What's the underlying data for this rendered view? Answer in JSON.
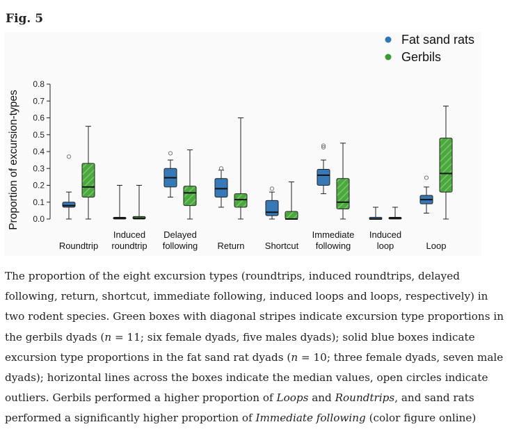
{
  "figure": {
    "label": "Fig. 5"
  },
  "chart_data": {
    "type": "box",
    "ylabel": "Proportion of excursion-types",
    "ylim": [
      0,
      0.8
    ],
    "yticks": [
      "0.0",
      "0.1",
      "0.2",
      "0.3",
      "0.4",
      "0.5",
      "0.6",
      "0.7",
      "0.8"
    ],
    "categories": [
      [
        "",
        "Roundtrip"
      ],
      [
        "Induced",
        "roundtrip"
      ],
      [
        "Delayed",
        "following"
      ],
      [
        "",
        "Return"
      ],
      [
        "",
        "Shortcut"
      ],
      [
        "Immediate",
        "following"
      ],
      [
        "Induced",
        "loop"
      ],
      [
        "",
        "Loop"
      ]
    ],
    "legend": {
      "position": "top-right",
      "items": [
        {
          "label": "Fat sand rats",
          "color": "#2e75b6"
        },
        {
          "label": "Gerbils",
          "color": "#3a9a35"
        }
      ]
    },
    "series": [
      {
        "name": "Fat sand rats",
        "color": "#3778b7",
        "style": "solid",
        "boxes": [
          {
            "min": 0.0,
            "q1": 0.07,
            "median": 0.08,
            "q3": 0.1,
            "max": 0.16,
            "outliers": [
              0.37
            ]
          },
          {
            "min": 0.0,
            "q1": 0.0,
            "median": 0.005,
            "q3": 0.01,
            "max": 0.2,
            "outliers": []
          },
          {
            "min": 0.13,
            "q1": 0.19,
            "median": 0.245,
            "q3": 0.3,
            "max": 0.35,
            "outliers": [
              0.39
            ]
          },
          {
            "min": 0.07,
            "q1": 0.13,
            "median": 0.18,
            "q3": 0.24,
            "max": 0.29,
            "outliers": [
              0.3
            ]
          },
          {
            "min": 0.0,
            "q1": 0.02,
            "median": 0.04,
            "q3": 0.11,
            "max": 0.16,
            "outliers": [
              0.18
            ]
          },
          {
            "min": 0.15,
            "q1": 0.2,
            "median": 0.26,
            "q3": 0.295,
            "max": 0.35,
            "outliers": [
              0.425,
              0.435
            ]
          },
          {
            "min": 0.0,
            "q1": 0.0,
            "median": 0.0,
            "q3": 0.0,
            "max": 0.07,
            "outliers": []
          },
          {
            "min": 0.035,
            "q1": 0.09,
            "median": 0.115,
            "q3": 0.14,
            "max": 0.19,
            "outliers": [
              0.245
            ]
          }
        ]
      },
      {
        "name": "Gerbils",
        "color": "#4aa83f",
        "style": "hatched",
        "boxes": [
          {
            "min": 0.0,
            "q1": 0.13,
            "median": 0.19,
            "q3": 0.33,
            "max": 0.55,
            "outliers": []
          },
          {
            "min": 0.0,
            "q1": 0.0,
            "median": 0.005,
            "q3": 0.015,
            "max": 0.2,
            "outliers": []
          },
          {
            "min": 0.0,
            "q1": 0.08,
            "median": 0.155,
            "q3": 0.195,
            "max": 0.41,
            "outliers": []
          },
          {
            "min": 0.0,
            "q1": 0.07,
            "median": 0.115,
            "q3": 0.15,
            "max": 0.6,
            "outliers": []
          },
          {
            "min": 0.0,
            "q1": 0.0,
            "median": 0.0,
            "q3": 0.045,
            "max": 0.22,
            "outliers": []
          },
          {
            "min": 0.0,
            "q1": 0.06,
            "median": 0.1,
            "q3": 0.24,
            "max": 0.45,
            "outliers": []
          },
          {
            "min": 0.0,
            "q1": 0.0,
            "median": 0.005,
            "q3": 0.01,
            "max": 0.07,
            "outliers": []
          },
          {
            "min": 0.0,
            "q1": 0.16,
            "median": 0.27,
            "q3": 0.48,
            "max": 0.67,
            "outliers": []
          }
        ]
      }
    ]
  },
  "caption": {
    "p1": "The proportion of the eight excursion types (roundtrips, induced roundtrips, delayed following, return, shortcut, immediate following, induced loops and loops, respectively) in two rodent species. Green boxes with diagonal stripes indicate excursion type proportions in the gerbils dyads (",
    "n1_var": "n",
    "p2": " = 11; six female dyads, five males dyads); solid blue boxes indicate excursion type proportions in the fat sand rat dyads (",
    "n2_var": "n",
    "p3": " = 10; three female dyads, seven male dyads); horizontal lines across the boxes indicate the median values, open circles indicate outliers. Gerbils performed a higher proportion of ",
    "em1": "Loops",
    "p4": " and ",
    "em2": "Roundtrips",
    "p5": ", and sand rats performed a significantly higher proportion of ",
    "em3": "Immediate following",
    "p6": " (color figure online)"
  }
}
